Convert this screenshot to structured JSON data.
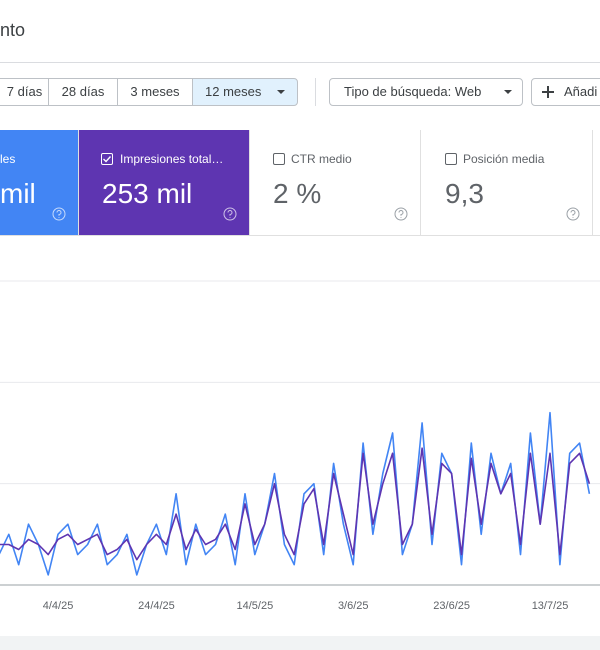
{
  "header": {
    "title": "nto"
  },
  "filters": {
    "dates": [
      "7 días",
      "28 días",
      "3 meses",
      "12 meses"
    ],
    "search_type": "Tipo de búsqueda: Web",
    "add": "Añadi"
  },
  "cards": [
    {
      "label": "les",
      "value": "mil"
    },
    {
      "label": "Impresiones total…",
      "value": "253 mil"
    },
    {
      "label": "CTR medio",
      "value": "2 %"
    },
    {
      "label": "Posición media",
      "value": "9,3"
    }
  ],
  "chart_data": {
    "type": "line",
    "categories": [
      null,
      null,
      null,
      null,
      null,
      null,
      "4/4/25",
      null,
      null,
      null,
      null,
      null,
      null,
      null,
      null,
      null,
      "24/4/25",
      null,
      null,
      null,
      null,
      null,
      null,
      null,
      null,
      null,
      "14/5/25",
      null,
      null,
      null,
      null,
      null,
      null,
      null,
      null,
      null,
      "3/6/25",
      null,
      null,
      null,
      null,
      null,
      null,
      null,
      null,
      null,
      "23/6/25",
      null,
      null,
      null,
      null,
      null,
      null,
      null,
      null,
      null,
      "13/7/25",
      null,
      null,
      null,
      null
    ],
    "series": [
      {
        "color": "#4285f4",
        "values": [
          0.3,
          0.5,
          0.2,
          0.6,
          0.4,
          0.1,
          0.5,
          0.6,
          0.3,
          0.4,
          0.6,
          0.2,
          0.3,
          0.5,
          0.1,
          0.4,
          0.6,
          0.3,
          0.9,
          0.2,
          0.6,
          0.3,
          0.4,
          0.7,
          0.2,
          0.9,
          0.3,
          0.6,
          1.1,
          0.4,
          0.2,
          0.9,
          1.0,
          0.3,
          1.2,
          0.6,
          0.2,
          1.4,
          0.5,
          1.1,
          1.5,
          0.3,
          0.6,
          1.6,
          0.4,
          1.3,
          1.1,
          0.2,
          1.4,
          0.5,
          1.3,
          0.9,
          1.2,
          0.3,
          1.5,
          0.6,
          1.7,
          0.2,
          1.3,
          1.4,
          0.9
        ]
      },
      {
        "color": "#5e35b1",
        "values": [
          0.4,
          0.4,
          0.35,
          0.45,
          0.4,
          0.3,
          0.45,
          0.5,
          0.4,
          0.45,
          0.5,
          0.3,
          0.35,
          0.45,
          0.25,
          0.4,
          0.5,
          0.4,
          0.7,
          0.35,
          0.55,
          0.4,
          0.45,
          0.6,
          0.35,
          0.8,
          0.4,
          0.6,
          1.0,
          0.5,
          0.3,
          0.8,
          0.95,
          0.4,
          1.1,
          0.7,
          0.3,
          1.3,
          0.6,
          1.0,
          1.3,
          0.4,
          0.6,
          1.35,
          0.5,
          1.2,
          1.1,
          0.3,
          1.25,
          0.6,
          1.2,
          0.9,
          1.1,
          0.4,
          1.3,
          0.6,
          1.3,
          0.3,
          1.2,
          1.3,
          1.0
        ]
      }
    ],
    "ylim": [
      0,
      3
    ],
    "grid": true
  }
}
